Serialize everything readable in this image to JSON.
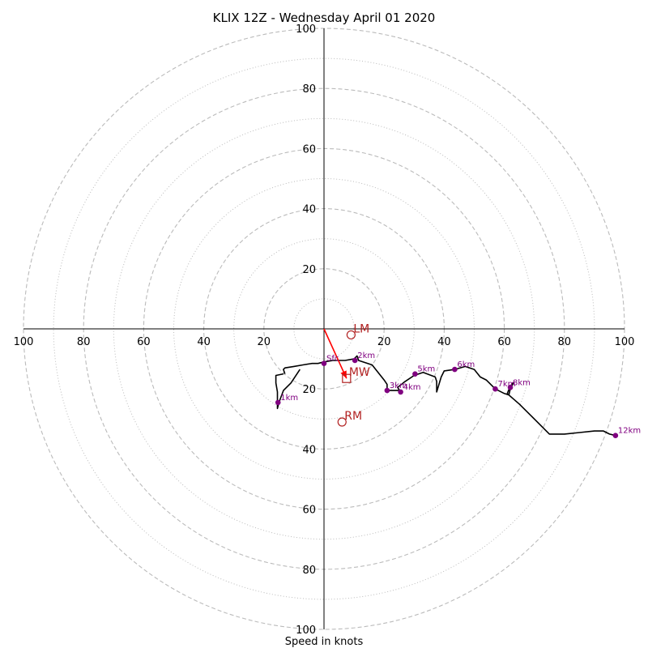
{
  "chart_data": {
    "type": "hodograph",
    "title": "KLIX 12Z - Wednesday April 01 2020",
    "xlabel": "Speed in knots",
    "range": 100,
    "ring_step_dashed": 20,
    "ring_step_dotted": 10,
    "tick_labels": [
      "100",
      "80",
      "60",
      "40",
      "20",
      "20",
      "40",
      "60",
      "80",
      "100"
    ],
    "tick_values": [
      -100,
      -80,
      -60,
      -40,
      -20,
      20,
      40,
      60,
      80,
      100
    ],
    "colors": {
      "trace": "#000000",
      "height_marker": "#800080",
      "motion": "#b22222",
      "mean_wind_vector": "#ff0000",
      "ring": "#bbbbbb"
    },
    "hodograph_trace": [
      [
        -13,
        -15
      ],
      [
        -13.5,
        -13.5
      ],
      [
        -13,
        -13
      ],
      [
        -10,
        -12.5
      ],
      [
        -7,
        -12
      ],
      [
        -4,
        -11.5
      ],
      [
        -2,
        -11.5
      ],
      [
        0,
        -11
      ],
      [
        3,
        -10.5
      ],
      [
        7,
        -10.5
      ],
      [
        10,
        -10
      ],
      [
        11,
        -9
      ],
      [
        11.5,
        -10.5
      ],
      [
        16,
        -12
      ],
      [
        20,
        -17
      ],
      [
        21,
        -18.5
      ],
      [
        21,
        -20.5
      ],
      [
        23,
        -20.5
      ],
      [
        25,
        -20.5
      ],
      [
        25.5,
        -21
      ],
      [
        24.5,
        -19.5
      ],
      [
        27,
        -17.5
      ],
      [
        30,
        -15.5
      ],
      [
        33,
        -14.5
      ],
      [
        37,
        -16
      ],
      [
        37.5,
        -17.5
      ],
      [
        37.5,
        -19.5
      ],
      [
        37.5,
        -21
      ],
      [
        39,
        -16
      ],
      [
        40,
        -14
      ],
      [
        43.5,
        -13.5
      ],
      [
        47,
        -12.5
      ],
      [
        50,
        -13.5
      ],
      [
        52,
        -16
      ],
      [
        54,
        -17
      ],
      [
        57,
        -20
      ],
      [
        60,
        -21.5
      ],
      [
        61.5,
        -22
      ],
      [
        61,
        -21.5
      ],
      [
        62,
        -19
      ],
      [
        63,
        -18
      ],
      [
        62,
        -20
      ],
      [
        61.5,
        -22
      ],
      [
        65,
        -25
      ],
      [
        70,
        -30
      ],
      [
        75,
        -35
      ],
      [
        80,
        -35
      ],
      [
        85,
        -34.5
      ],
      [
        90,
        -34
      ],
      [
        93,
        -34
      ],
      [
        95,
        -35
      ],
      [
        97,
        -35.5
      ]
    ],
    "low_level_trace": [
      [
        -13.5,
        -15
      ],
      [
        -16,
        -15.5
      ],
      [
        -16,
        -18
      ],
      [
        -15.5,
        -21
      ],
      [
        -15.5,
        -26.5
      ],
      [
        -15,
        -24.5
      ],
      [
        -13.5,
        -20.5
      ],
      [
        -11,
        -18
      ],
      [
        -8,
        -13.5
      ]
    ],
    "height_markers": [
      {
        "label": "1km",
        "u": -15.3,
        "v": -24.5
      },
      {
        "label": "2km",
        "u": 10.3,
        "v": -10.5
      },
      {
        "label": "3km",
        "u": 21,
        "v": -20.5
      },
      {
        "label": "4km",
        "u": 25.5,
        "v": -21
      },
      {
        "label": "5km",
        "u": 30.3,
        "v": -15
      },
      {
        "label": "6km",
        "u": 43.5,
        "v": -13.5
      },
      {
        "label": "7km",
        "u": 57,
        "v": -20
      },
      {
        "label": "8km",
        "u": 62,
        "v": -19.5
      },
      {
        "label": "12km",
        "u": 97,
        "v": -35.5
      },
      {
        "label": "Sfc",
        "u": 0,
        "v": -11.5
      }
    ],
    "storm_motion": [
      {
        "label": "LM",
        "u": 9,
        "v": -2,
        "marker": "circle"
      },
      {
        "label": "RM",
        "u": 6,
        "v": -31,
        "marker": "circle"
      },
      {
        "label": "MW",
        "u": 7.5,
        "v": -16.5,
        "marker": "square"
      }
    ],
    "mean_wind_vector": {
      "u": 7.5,
      "v": -16.5
    }
  }
}
